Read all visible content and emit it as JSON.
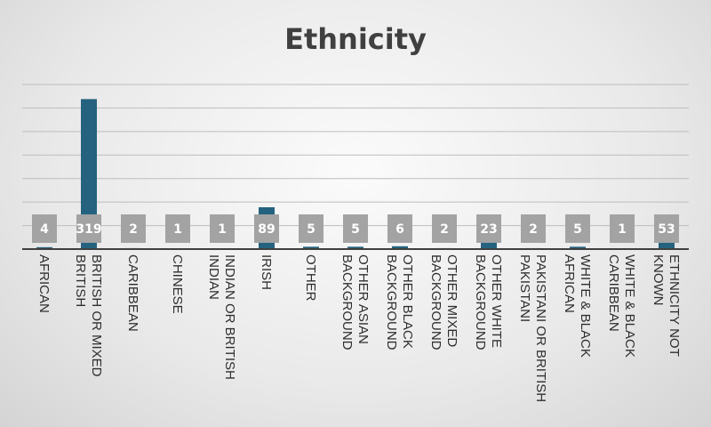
{
  "chart_data": {
    "type": "bar",
    "title": "Ethnicity",
    "categories": [
      [
        "AFRICAN"
      ],
      [
        "BRITISH OR MIXED",
        "BRITISH"
      ],
      [
        "CARIBBEAN"
      ],
      [
        "CHINESE"
      ],
      [
        "INDIAN OR BRITISH",
        "INDIAN"
      ],
      [
        "IRISH"
      ],
      [
        "OTHER"
      ],
      [
        "OTHER ASIAN",
        "BACKGROUND"
      ],
      [
        "OTHER BLACK",
        "BACKGROUND"
      ],
      [
        "OTHER MIXED",
        "BACKGROUND"
      ],
      [
        "OTHER WHITE",
        "BACKGROUND"
      ],
      [
        "PAKISTANI OR BRITISH",
        "PAKISTANI"
      ],
      [
        "WHITE & BLACK",
        "AFRICAN"
      ],
      [
        "WHITE & BLACK",
        "CARIBBEAN"
      ],
      [
        "ETHNICITY NOT",
        "KNOWN"
      ]
    ],
    "values": [
      4,
      319,
      2,
      1,
      1,
      89,
      5,
      5,
      6,
      2,
      23,
      2,
      5,
      1,
      53
    ],
    "data_labels": [
      "4",
      "319",
      "2",
      "1",
      "1",
      "89",
      "5",
      "5",
      "6",
      "2",
      "23",
      "2",
      "5",
      "1",
      "53"
    ],
    "ylim": [
      0,
      350
    ],
    "grid": true,
    "legend": "none",
    "bar_color": "#24627f",
    "label_box_color": "#a3a3a3"
  }
}
